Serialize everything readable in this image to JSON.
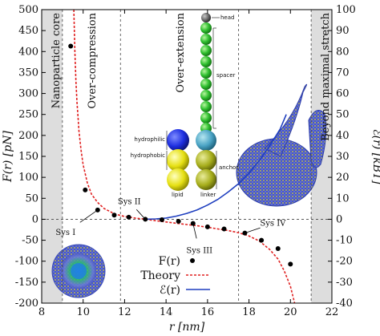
{
  "chart_data": {
    "type": "scatter",
    "xlabel": "r [nm]",
    "ylabel_left": "F(r) [pN]",
    "ylabel_right": "ℰ(r) [kBT]",
    "xlim": [
      8,
      22
    ],
    "ylim_left": [
      -200,
      500
    ],
    "ylim_right": [
      -40,
      100
    ],
    "x_ticks": [
      "8",
      "10",
      "12",
      "14",
      "16",
      "18",
      "20",
      "22"
    ],
    "y_ticks_left": [
      "500",
      "450",
      "400",
      "350",
      "300",
      "250",
      "200",
      "150",
      "100",
      "50",
      "0",
      "-50",
      "-100",
      "-150",
      "-200"
    ],
    "y_ticks_right": [
      "100",
      "90",
      "80",
      "70",
      "60",
      "50",
      "40",
      "30",
      "20",
      "10",
      "0",
      "-10",
      "-20",
      "-30",
      "-40"
    ],
    "regions": [
      "Nanoparticle core",
      "Over-compression",
      "Over-extension",
      "Beyond maximal stretch"
    ],
    "boundaries": [
      9.0,
      11.8,
      17.5,
      21.0
    ],
    "series": [
      {
        "name": "F(r)",
        "style": "points",
        "color": "#000000",
        "x": [
          9.4,
          10.1,
          10.7,
          11.5,
          12.2,
          13.0,
          13.8,
          14.6,
          15.3,
          16.0,
          16.8,
          17.8,
          18.6,
          19.4,
          20.0
        ],
        "y": [
          413,
          70,
          22,
          10,
          5,
          0,
          -1,
          -5,
          -10,
          -18,
          -23,
          -33,
          -50,
          -70,
          -107
        ]
      },
      {
        "name": "Theory",
        "style": "dashed-line",
        "color": "#e02020",
        "x": [
          9.55,
          9.6,
          9.65,
          9.7,
          9.75,
          9.8,
          9.9,
          10.0,
          10.2,
          10.4,
          10.7,
          11.0,
          11.5,
          12.0,
          12.5,
          13.0,
          13.5,
          14.0,
          14.5,
          15.0,
          15.5,
          16.0,
          16.5,
          17.0,
          17.5,
          18.0,
          18.5,
          19.0,
          19.4,
          19.7,
          20.0,
          20.2
        ],
        "y": [
          500,
          400,
          330,
          280,
          245,
          210,
          165,
          130,
          87,
          60,
          40,
          26,
          13,
          6.5,
          3,
          0,
          -3.3,
          -6.5,
          -9.5,
          -12.5,
          -15.5,
          -19,
          -23,
          -27,
          -32,
          -40,
          -52,
          -72,
          -95,
          -123,
          -160,
          -200
        ]
      },
      {
        "name": "ℰ(r)",
        "style": "solid-line",
        "axis": "right",
        "color": "#1f3fbf",
        "x": [
          13.0,
          13.5,
          14.0,
          14.5,
          15.0,
          15.5,
          16.0,
          16.5,
          17.0,
          17.5,
          18.0,
          18.5,
          19.0,
          19.5,
          19.8
        ],
        "y": [
          0,
          0.15,
          0.6,
          1.5,
          2.8,
          4.5,
          6.8,
          9.5,
          13,
          17,
          22,
          28,
          35,
          43,
          50
        ]
      }
    ],
    "annotations": [
      {
        "label": "Sys I",
        "x": 10.7,
        "y": 22
      },
      {
        "label": "Sys II",
        "x": 13.0,
        "y": 0
      },
      {
        "label": "Sys III",
        "x": 15.3,
        "y": -10
      },
      {
        "label": "Sys IV",
        "x": 17.8,
        "y": -33
      }
    ],
    "molecule_labels": [
      "head",
      "spacer",
      "hydrophilic",
      "hydrophobic",
      "anchor",
      "lipid",
      "linker"
    ],
    "legend": {
      "position": "bottom-center",
      "entries": [
        "F(r)",
        "Theory",
        "ℰ(r)"
      ]
    },
    "grid": false
  }
}
